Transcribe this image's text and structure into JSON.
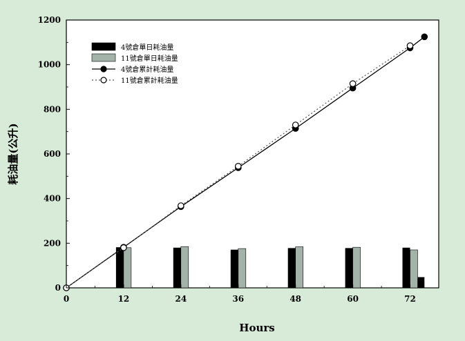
{
  "chart_data": {
    "type": "bar",
    "xlabel": "Hours",
    "ylabel": "耗油量(公升)",
    "xlim": [
      0,
      78
    ],
    "ylim": [
      0,
      1200
    ],
    "x_ticks": [
      0,
      12,
      24,
      36,
      48,
      60,
      72
    ],
    "y_ticks": [
      0,
      200,
      400,
      600,
      800,
      1000,
      1200
    ],
    "grid": false,
    "legend_position": "top-left",
    "colors": {
      "background": "#d8ead8",
      "plot_area": "#ffffff",
      "bar_series_1": "#000000",
      "bar_series_2": "#a3b3aa",
      "line_series_1": "#000000",
      "line_series_2": "#555555"
    },
    "bar_series": [
      {
        "name": "4號倉單日耗油量",
        "x": [
          12,
          24,
          36,
          48,
          60,
          72,
          75
        ],
        "values": [
          182,
          180,
          171,
          178,
          178,
          180,
          48
        ]
      },
      {
        "name": "11號倉單日耗油量",
        "x": [
          12,
          24,
          36,
          48,
          60,
          72
        ],
        "values": [
          180,
          185,
          176,
          184,
          182,
          170
        ]
      }
    ],
    "line_series": [
      {
        "name": "4號倉累計耗油量",
        "marker": "filled-circle",
        "line": "solid",
        "x": [
          0,
          12,
          24,
          36,
          48,
          60,
          72,
          75
        ],
        "y": [
          0,
          182,
          364,
          538,
          714,
          895,
          1075,
          1125
        ]
      },
      {
        "name": "11號倉累計耗油量",
        "marker": "open-circle",
        "line": "dotted",
        "x": [
          0,
          12,
          24,
          36,
          48,
          60,
          72
        ],
        "y": [
          0,
          180,
          368,
          545,
          730,
          915,
          1085
        ]
      }
    ]
  }
}
